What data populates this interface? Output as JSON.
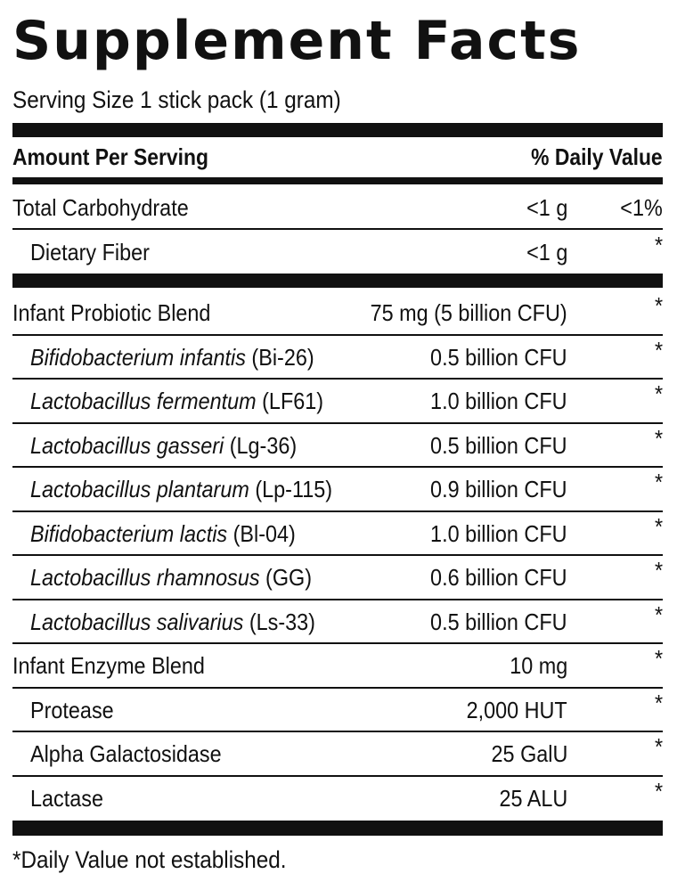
{
  "title": "Supplement Facts",
  "serving_size": "Serving Size 1 stick pack (1 gram)",
  "header": {
    "amount_label": "Amount Per Serving",
    "dv_label": "% Daily Value"
  },
  "rows": [
    {
      "name": "Total Carbohydrate",
      "amount": "<1 g",
      "dv": "<1%"
    },
    {
      "name": "Dietary Fiber",
      "amount": "<1 g",
      "dv": "*"
    },
    {
      "name": "Infant Probiotic Blend",
      "amount": "75 mg (5 billion CFU)",
      "dv": "*"
    },
    {
      "species": "Bifidobacterium infantis",
      "strain": " (Bi-26)",
      "amount": "0.5 billion CFU",
      "dv": "*"
    },
    {
      "species": "Lactobacillus fermentum",
      "strain": " (LF61)",
      "amount": "1.0 billion CFU",
      "dv": "*"
    },
    {
      "species": "Lactobacillus gasseri",
      "strain": " (Lg-36)",
      "amount": "0.5 billion CFU",
      "dv": "*"
    },
    {
      "species": "Lactobacillus plantarum",
      "strain": " (Lp-115)",
      "amount": "0.9 billion CFU",
      "dv": "*"
    },
    {
      "species": "Bifidobacterium lactis",
      "strain": " (Bl-04)",
      "amount": "1.0 billion CFU",
      "dv": "*"
    },
    {
      "species": "Lactobacillus rhamnosus",
      "strain": " (GG)",
      "amount": "0.6 billion CFU",
      "dv": "*"
    },
    {
      "species": "Lactobacillus salivarius",
      "strain": " (Ls-33)",
      "amount": "0.5 billion CFU",
      "dv": "*"
    },
    {
      "name": "Infant Enzyme Blend",
      "amount": "10 mg",
      "dv": "*"
    },
    {
      "name": "Protease",
      "amount": "2,000 HUT",
      "dv": "*"
    },
    {
      "name": "Alpha Galactosidase",
      "amount": "25 GalU",
      "dv": "*"
    },
    {
      "name": "Lactase",
      "amount": "25 ALU",
      "dv": "*"
    }
  ],
  "footnote": "*Daily Value not established."
}
